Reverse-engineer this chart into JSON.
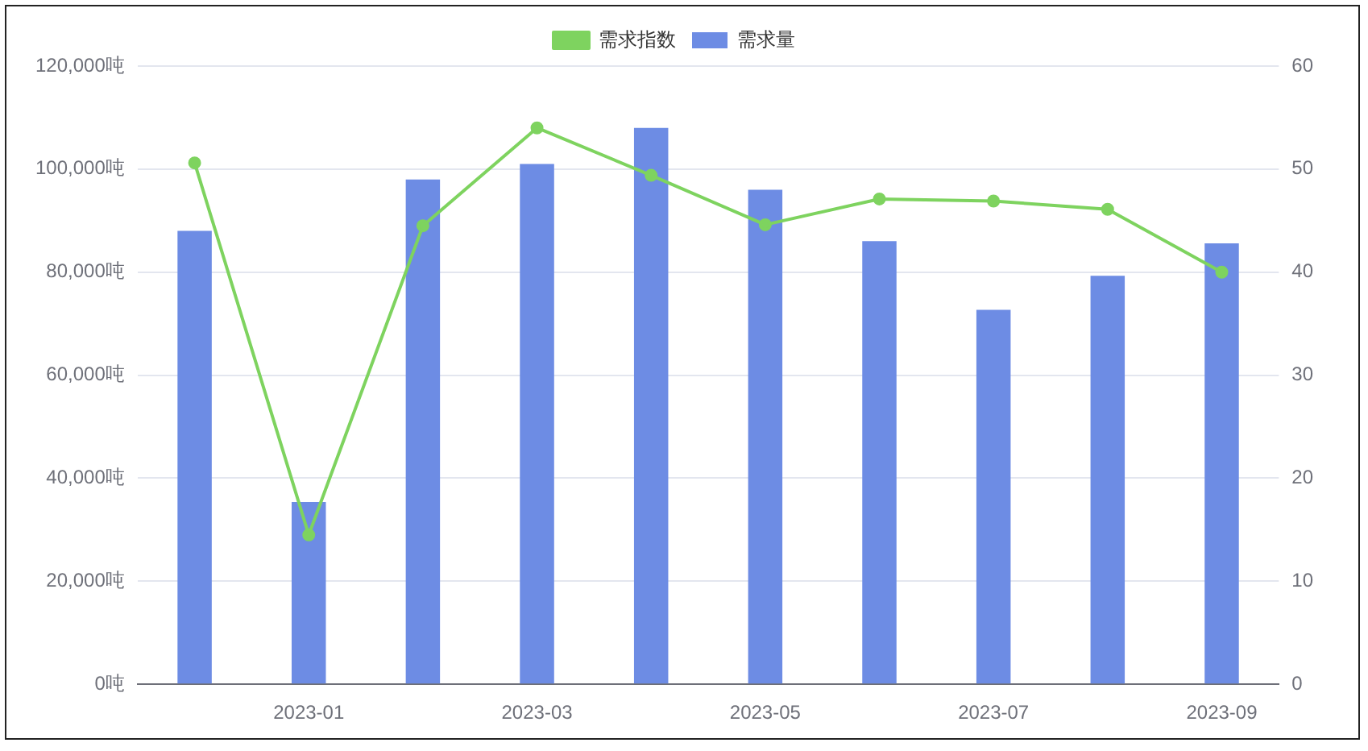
{
  "chart_data": {
    "type": "bar",
    "categories": [
      null,
      "2023-01",
      null,
      "2023-03",
      null,
      "2023-05",
      null,
      "2023-07",
      null,
      "2023-09"
    ],
    "series": [
      {
        "name": "需求指数",
        "type": "line",
        "axis": "y2",
        "color": "#7ed35f",
        "values": [
          50.6,
          14.5,
          44.5,
          54,
          49.4,
          44.6,
          47.1,
          46.9,
          46.1,
          40
        ]
      },
      {
        "name": "需求量",
        "color": "#6d8ce4",
        "values": [
          88000,
          35400,
          98000,
          101000,
          108000,
          96000,
          86000,
          72700,
          79300,
          85600
        ]
      }
    ],
    "ylim": [
      0,
      120000
    ],
    "yticks": [
      {
        "value": 0,
        "label": "0吨"
      },
      {
        "value": 20000,
        "label": "20,000吨"
      },
      {
        "value": 40000,
        "label": "40,000吨"
      },
      {
        "value": 60000,
        "label": "60,000吨"
      },
      {
        "value": 80000,
        "label": "80,000吨"
      },
      {
        "value": 100000,
        "label": "100,000吨"
      },
      {
        "value": 120000,
        "label": "120,000吨"
      }
    ],
    "y2lim": [
      0,
      60
    ],
    "y2ticks": [
      0,
      10,
      20,
      30,
      40,
      50,
      60
    ],
    "grid": "y",
    "legend": "top",
    "marker": "circle",
    "line_style": "solid"
  }
}
